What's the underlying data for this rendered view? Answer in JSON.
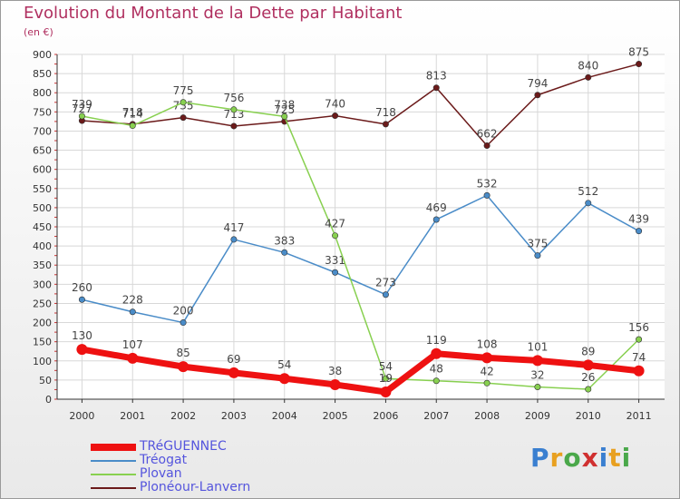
{
  "chart_data": {
    "type": "line",
    "title": "Evolution du Montant de la Dette par Habitant",
    "subtitle": "(en €)",
    "x": [
      "2000",
      "2001",
      "2002",
      "2003",
      "2004",
      "2005",
      "2006",
      "2007",
      "2008",
      "2009",
      "2010",
      "2011"
    ],
    "ylim": [
      0,
      900
    ],
    "yticks": [
      0,
      50,
      100,
      150,
      200,
      250,
      300,
      350,
      400,
      450,
      500,
      550,
      600,
      650,
      700,
      750,
      800,
      850,
      900
    ],
    "grid": true,
    "legend_position": "bottom-left",
    "series": [
      {
        "name": "Ploméour-Lanvern",
        "display": "Plonéour-Lanvern",
        "color": "#6b1a1a",
        "values": [
          727,
          718,
          735,
          713,
          725,
          740,
          718,
          813,
          662,
          794,
          840,
          875
        ]
      },
      {
        "name": "Tréogat",
        "color": "#4a8cc8",
        "values": [
          260,
          228,
          200,
          417,
          383,
          331,
          273,
          469,
          532,
          375,
          512,
          439
        ]
      },
      {
        "name": "Plovan",
        "color": "#88d050",
        "values": [
          739,
          714,
          775,
          756,
          738,
          427,
          54,
          48,
          42,
          32,
          26,
          156
        ]
      },
      {
        "name": "TRéGUENNEC",
        "color": "#ee1111",
        "values": [
          130,
          107,
          85,
          69,
          54,
          38,
          19,
          119,
          108,
          101,
          89,
          74
        ]
      }
    ]
  },
  "legend": {
    "items": [
      {
        "label": "TRéGUENNEC",
        "color": "#ee1111"
      },
      {
        "label": "Tréogat",
        "color": "#4a8cc8"
      },
      {
        "label": "Plovan",
        "color": "#88d050"
      },
      {
        "label": "Plonéour-Lanvern",
        "color": "#6b1a1a"
      }
    ]
  },
  "logo": {
    "text": "Proxiti"
  }
}
